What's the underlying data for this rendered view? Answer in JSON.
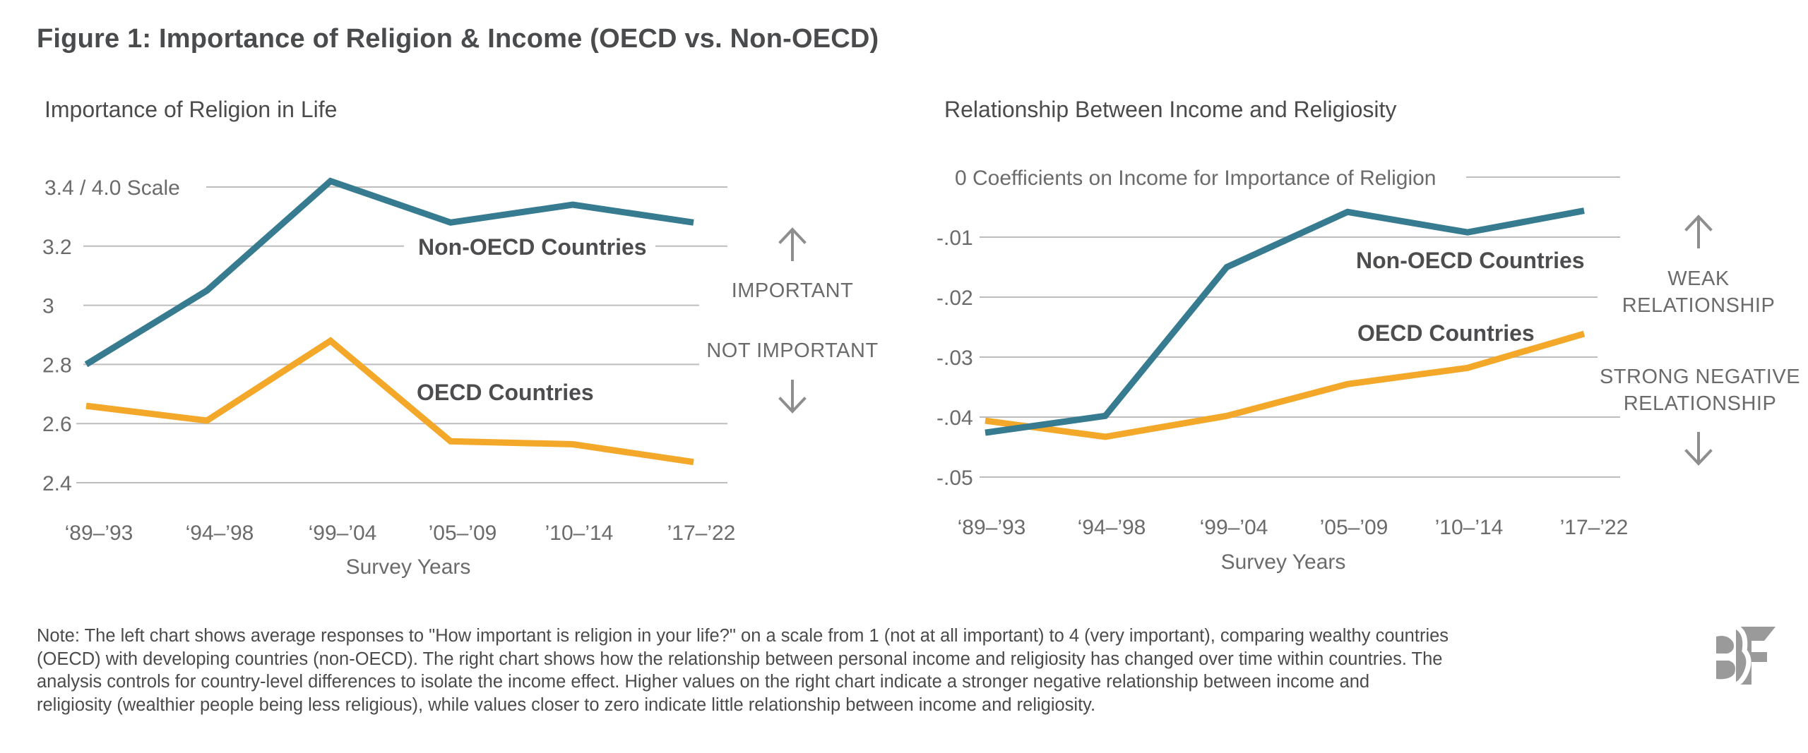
{
  "figure": {
    "title": "Figure 1: Importance of Religion & Income (OECD vs. Non-OECD)",
    "note": "Note: The left chart shows average responses to \"How important is religion in your life?\" on a scale from 1 (not at all important) to 4 (very important), comparing wealthy countries (OECD) with developing countries (non-OECD). The right chart shows how the relationship between personal income and religiosity has changed over time within countries. The analysis controls for country-level differences to isolate the income effect. Higher values on the right chart indicate a stronger negative relationship between income and religiosity (wealthier people being less religious), while values closer to zero indicate little relationship between income and religiosity.",
    "logo_text": "BF",
    "colors": {
      "non_oecd": "#367b8f",
      "oecd": "#f3a829",
      "grid": "#bdbdbd",
      "text": "#4b4b4b",
      "logo": "#9a9a9a"
    }
  },
  "chart_data": [
    {
      "type": "line",
      "title": "Importance of Religion in Life",
      "xlabel": "Survey Years",
      "ylabel": "",
      "categories": [
        "‘89–’93",
        "‘94–’98",
        "‘99–’04",
        "’05–’09",
        "’10–’14",
        "’17–’22"
      ],
      "ylim": [
        2.4,
        3.4
      ],
      "yticks": [
        2.4,
        2.6,
        2.8,
        3.0,
        3.2,
        3.4
      ],
      "ytick_labels": [
        "2.4",
        "2.6",
        "2.8",
        "3",
        "3.2",
        "3.4 / 4.0 Scale"
      ],
      "grid": true,
      "series": [
        {
          "name": "Non-OECD Countries",
          "color": "#367b8f",
          "values": [
            2.8,
            3.05,
            3.42,
            3.28,
            3.34,
            3.28
          ]
        },
        {
          "name": "OECD Countries",
          "color": "#f3a829",
          "values": [
            2.66,
            2.61,
            2.88,
            2.54,
            2.53,
            2.47
          ]
        }
      ],
      "annotations": {
        "up": "IMPORTANT",
        "down": "NOT IMPORTANT"
      }
    },
    {
      "type": "line",
      "title": "Relationship Between Income and Religiosity",
      "xlabel": "Survey Years",
      "ylabel": "",
      "categories": [
        "‘89–’93",
        "‘94–’98",
        "‘99–’04",
        "’05–’09",
        "’10–’14",
        "’17–’22"
      ],
      "ylim": [
        -0.05,
        0
      ],
      "yticks": [
        -0.05,
        -0.04,
        -0.03,
        -0.02,
        -0.01,
        0
      ],
      "ytick_labels": [
        "-.05",
        "-.04",
        "-.03",
        "-.02",
        "-.01",
        "0 Coefficients on Income for Importance of Religion"
      ],
      "grid": true,
      "series": [
        {
          "name": "Non-OECD Countries",
          "color": "#367b8f",
          "values": [
            -0.0426,
            -0.0398,
            -0.015,
            -0.0058,
            -0.0092,
            -0.0056
          ]
        },
        {
          "name": "OECD Countries",
          "color": "#f3a829",
          "values": [
            -0.0406,
            -0.0433,
            -0.0398,
            -0.0345,
            -0.0318,
            -0.0261
          ]
        }
      ],
      "annotations": {
        "up": [
          "WEAK",
          "RELATIONSHIP"
        ],
        "down": [
          "STRONG NEGATIVE",
          "RELATIONSHIP"
        ]
      }
    }
  ]
}
